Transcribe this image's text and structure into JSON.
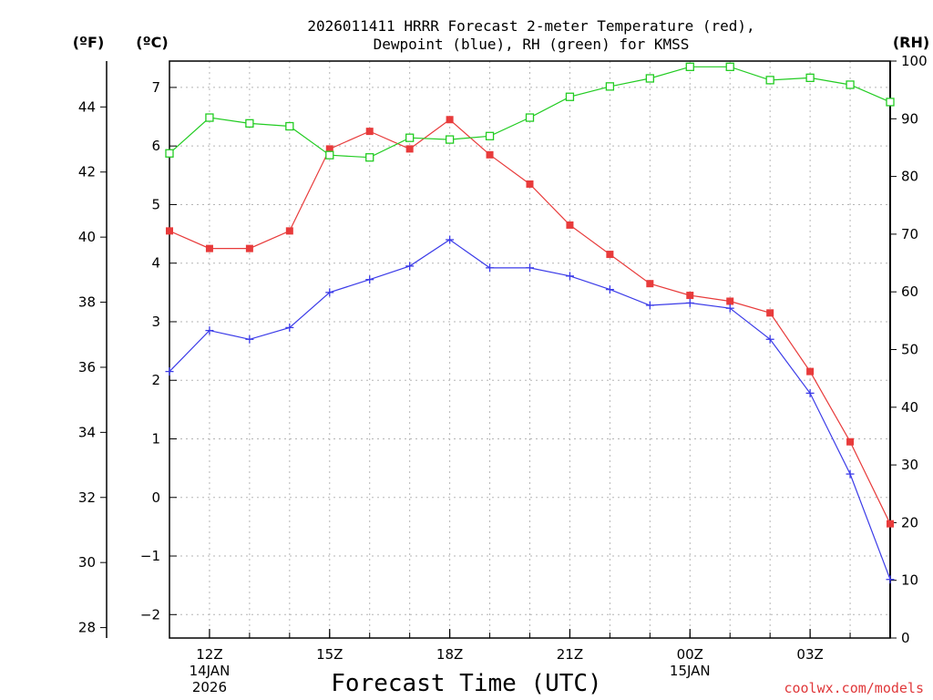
{
  "chart_data": {
    "type": "line",
    "title_line1": "2026011411 HRRR Forecast 2-meter Temperature (red),",
    "title_line2": "Dewpoint (blue), RH (green) for KMSS",
    "xlabel": "Forecast Time (UTC)",
    "credit": "coolwx.com/models",
    "units": {
      "fahrenheit": "(ºF)",
      "celsius": "(ºC)",
      "rh": "(RH)"
    },
    "x_range": [
      11,
      29
    ],
    "x": [
      11,
      12,
      13,
      14,
      15,
      16,
      17,
      18,
      19,
      20,
      21,
      22,
      23,
      24,
      25,
      26,
      27,
      28,
      29
    ],
    "x_ticks": [
      {
        "x": 12,
        "label": "12Z",
        "sub1": "14JAN",
        "sub2": "2026"
      },
      {
        "x": 15,
        "label": "15Z",
        "sub1": "",
        "sub2": ""
      },
      {
        "x": 18,
        "label": "18Z",
        "sub1": "",
        "sub2": ""
      },
      {
        "x": 21,
        "label": "21Z",
        "sub1": "",
        "sub2": ""
      },
      {
        "x": 24,
        "label": "00Z",
        "sub1": "15JAN",
        "sub2": ""
      },
      {
        "x": 27,
        "label": "03Z",
        "sub1": "",
        "sub2": ""
      }
    ],
    "y_celsius": {
      "range": [
        -2.4,
        7.45
      ],
      "ticks": [
        -2,
        -1,
        0,
        1,
        2,
        3,
        4,
        5,
        6,
        7
      ]
    },
    "y_fahrenheit": {
      "ticks": [
        28,
        30,
        32,
        34,
        36,
        38,
        40,
        42,
        44
      ]
    },
    "y_rh": {
      "range": [
        0,
        100
      ],
      "ticks": [
        0,
        10,
        20,
        30,
        40,
        50,
        60,
        70,
        80,
        90,
        100
      ]
    },
    "series": [
      {
        "name": "Temperature",
        "unit": "C",
        "color": "#e83b3b",
        "marker": "filled-square",
        "values": [
          4.55,
          4.25,
          4.25,
          4.55,
          5.95,
          6.25,
          5.95,
          6.45,
          5.85,
          5.35,
          4.65,
          4.15,
          3.65,
          3.45,
          3.35,
          3.15,
          2.15,
          0.95,
          -0.45
        ]
      },
      {
        "name": "Dewpoint",
        "unit": "C",
        "color": "#3b3be8",
        "marker": "plus",
        "values": [
          2.15,
          2.85,
          2.7,
          2.9,
          3.5,
          3.72,
          3.95,
          4.4,
          3.92,
          3.92,
          3.78,
          3.55,
          3.28,
          3.32,
          3.23,
          2.7,
          1.78,
          0.4,
          -1.4
        ]
      },
      {
        "name": "RH",
        "unit": "%",
        "color": "#22cc22",
        "marker": "open-square",
        "values": [
          84,
          90.2,
          89.2,
          88.7,
          83.7,
          83.3,
          86.7,
          86.4,
          87,
          90.2,
          93.8,
          95.6,
          97,
          99,
          99,
          96.7,
          97.1,
          95.9,
          92.9
        ]
      }
    ]
  }
}
